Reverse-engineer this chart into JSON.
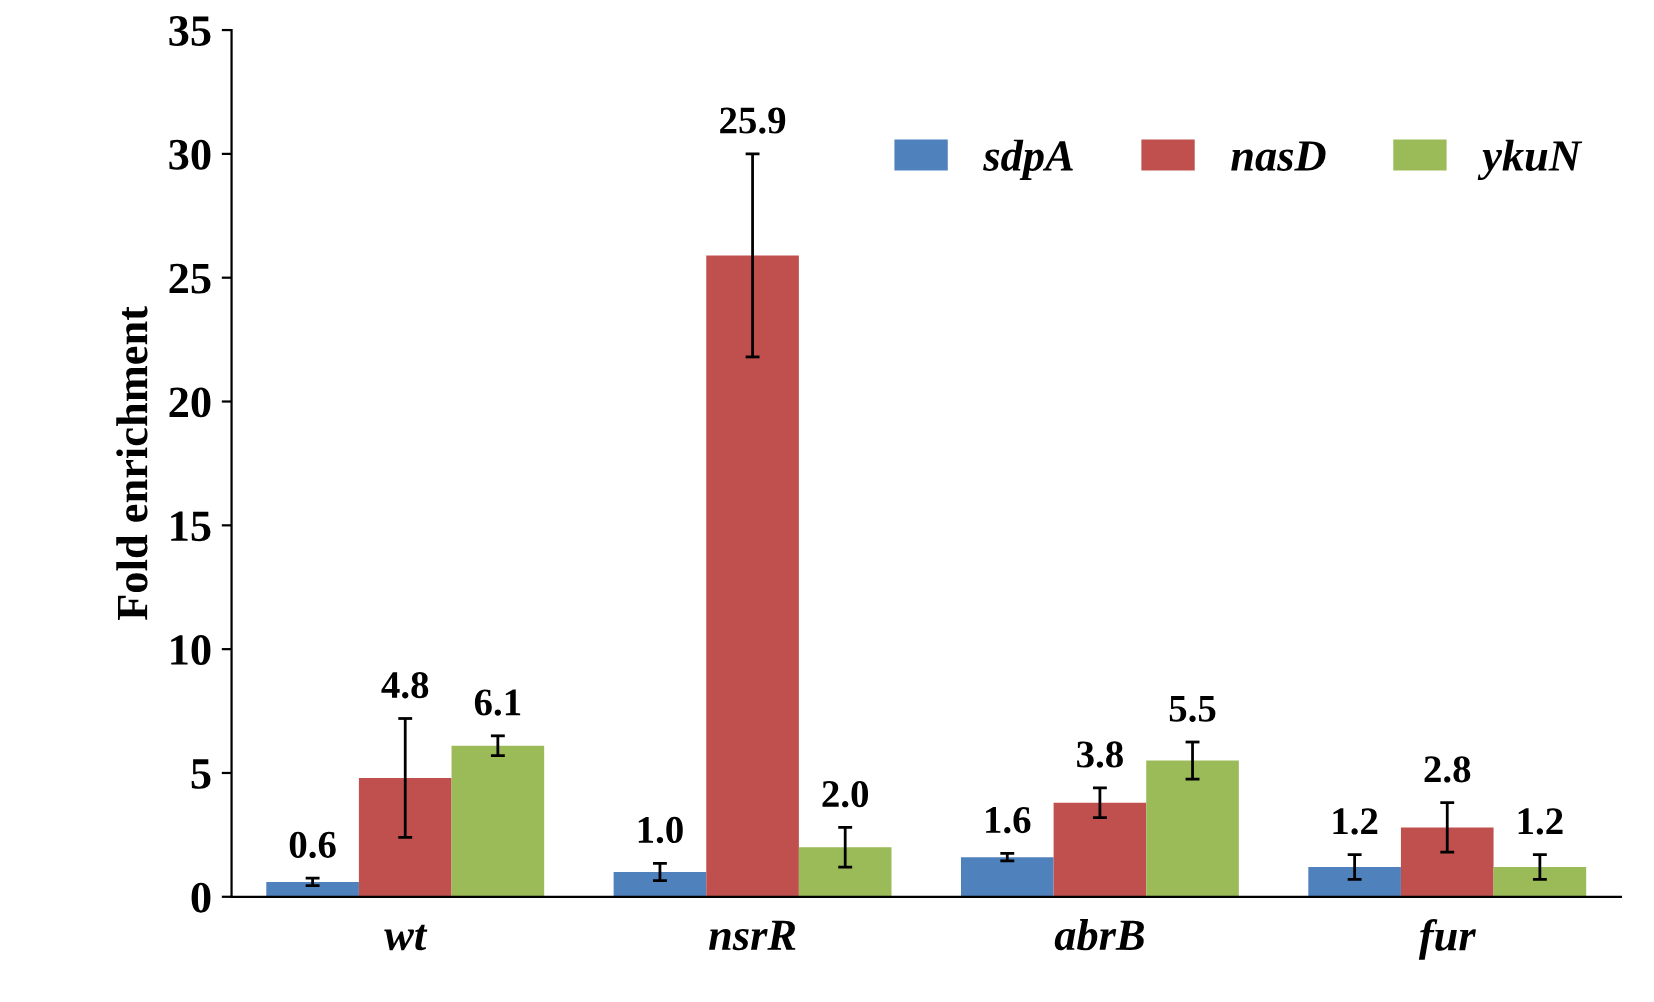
{
  "chart_data": {
    "type": "bar",
    "ylabel": "Fold enrichment",
    "categories": [
      "wt",
      "nsrR",
      "abrB",
      "fur"
    ],
    "series": [
      {
        "name": "sdpA",
        "color": "#4f81bd",
        "values": [
          0.6,
          1.0,
          1.6,
          1.2
        ],
        "errors": [
          0.15,
          0.35,
          0.15,
          0.5
        ],
        "value_labels": [
          "0.6",
          "1.0",
          "1.6",
          "1.2"
        ]
      },
      {
        "name": "nasD",
        "color": "#c0504d",
        "values": [
          4.8,
          25.9,
          3.8,
          2.8
        ],
        "errors": [
          2.4,
          4.1,
          0.6,
          1.0
        ],
        "value_labels": [
          "4.8",
          "25.9",
          "3.8",
          "2.8"
        ]
      },
      {
        "name": "ykuN",
        "color": "#9bbb59",
        "values": [
          6.1,
          2.0,
          5.5,
          1.2
        ],
        "errors": [
          0.4,
          0.8,
          0.75,
          0.5
        ],
        "value_labels": [
          "6.1",
          "2.0",
          "5.5",
          "1.2"
        ]
      }
    ],
    "ylim": [
      0,
      35
    ],
    "yticks": [
      0,
      5,
      10,
      15,
      20,
      25,
      30,
      35
    ],
    "legend": "top right",
    "grid": false
  }
}
